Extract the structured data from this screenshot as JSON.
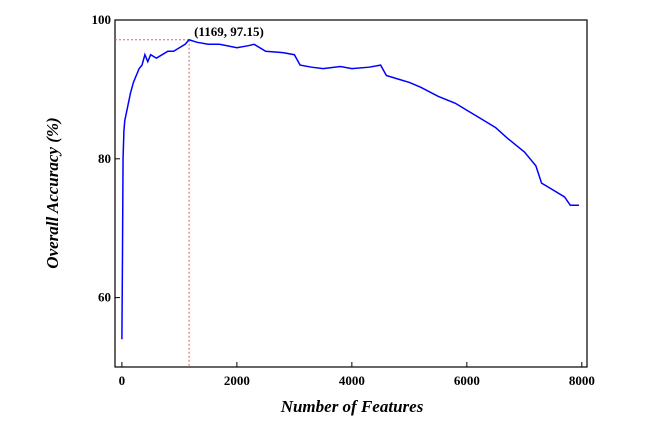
{
  "chart_data": {
    "type": "line",
    "x_label": "Number of Features",
    "y_label": "Overall Accuracy (%)",
    "x": [
      0,
      10,
      20,
      35,
      50,
      75,
      100,
      150,
      200,
      250,
      300,
      350,
      400,
      450,
      500,
      600,
      700,
      800,
      900,
      1000,
      1100,
      1169,
      1300,
      1500,
      1700,
      2000,
      2200,
      2300,
      2500,
      2800,
      3000,
      3100,
      3300,
      3500,
      3800,
      4000,
      4300,
      4500,
      4600,
      4800,
      5000,
      5200,
      5500,
      5800,
      6000,
      6200,
      6500,
      6700,
      7000,
      7100,
      7200,
      7300,
      7500,
      7700,
      7800,
      7950
    ],
    "series": [
      {
        "name": "Overall Accuracy",
        "color": "#0000ff",
        "values": [
          54,
          66,
          80,
          84,
          85.5,
          86.5,
          87.5,
          89.5,
          91,
          92,
          93,
          93.5,
          95,
          94,
          95,
          94.5,
          95,
          95.5,
          95.5,
          96,
          96.5,
          97.15,
          96.8,
          96.5,
          96.5,
          96,
          96.3,
          96.5,
          95.5,
          95.3,
          95,
          93.5,
          93.2,
          93,
          93.3,
          93,
          93.2,
          93.5,
          92,
          91.5,
          91,
          90.3,
          89,
          88,
          87,
          86,
          84.5,
          83,
          81,
          80,
          79,
          76.5,
          75.5,
          74.5,
          73.3,
          73.3
        ]
      }
    ],
    "annotation": {
      "text": "(1169, 97.15)",
      "x": 1169,
      "y": 97.15,
      "color": "#e06060"
    },
    "xlim": [
      -120,
      8090
    ],
    "ylim": [
      50,
      100
    ],
    "xticks": [
      0,
      2000,
      4000,
      6000,
      8000
    ],
    "yticks": [
      60,
      80,
      100
    ]
  }
}
